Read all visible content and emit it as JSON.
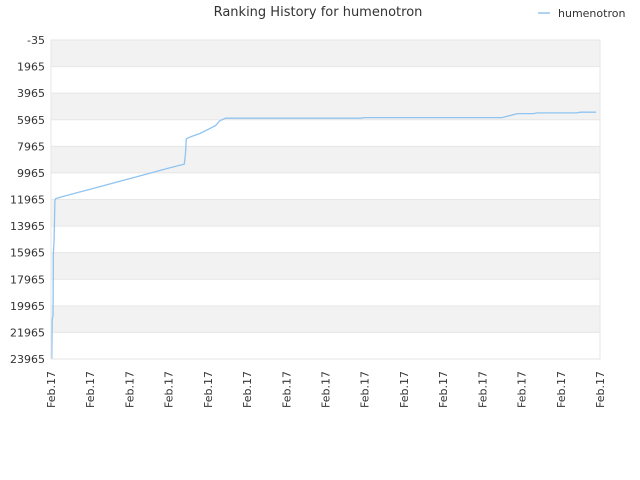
{
  "chart_data": {
    "type": "line",
    "title": "Ranking History for humenotron",
    "xlabel": "",
    "ylabel": "",
    "y_axis_inverted": true,
    "ylim": [
      -35,
      23965
    ],
    "y_ticks": [
      "-35",
      "1965",
      "3965",
      "5965",
      "7965",
      "9965",
      "11965",
      "13965",
      "15965",
      "17965",
      "19965",
      "21965",
      "23965"
    ],
    "x_ticks": [
      "Feb.17",
      "Feb.17",
      "Feb.17",
      "Feb.17",
      "Feb.17",
      "Feb.17",
      "Feb.17",
      "Feb.17",
      "Feb.17",
      "Feb.17",
      "Feb.17",
      "Feb.17",
      "Feb.17",
      "Feb.17",
      "Feb.17"
    ],
    "x_range": [
      0,
      14
    ],
    "grid": "horizontal bands",
    "legend_position": "top-right",
    "series": [
      {
        "name": "humenotron",
        "color": "#90c4f0",
        "points": [
          [
            0.02,
            23965
          ],
          [
            0.03,
            21000
          ],
          [
            0.05,
            20700
          ],
          [
            0.06,
            16000
          ],
          [
            0.08,
            15000
          ],
          [
            0.1,
            12050
          ],
          [
            0.12,
            11900
          ],
          [
            0.35,
            11700
          ],
          [
            1.0,
            11200
          ],
          [
            2.0,
            10400
          ],
          [
            3.0,
            9600
          ],
          [
            3.4,
            9300
          ],
          [
            3.43,
            8500
          ],
          [
            3.45,
            7400
          ],
          [
            3.6,
            7200
          ],
          [
            3.8,
            7000
          ],
          [
            4.0,
            6700
          ],
          [
            4.2,
            6400
          ],
          [
            4.3,
            6050
          ],
          [
            4.45,
            5850
          ],
          [
            5.0,
            5850
          ],
          [
            7.0,
            5850
          ],
          [
            7.9,
            5850
          ],
          [
            8.0,
            5800
          ],
          [
            10.0,
            5800
          ],
          [
            11.5,
            5800
          ],
          [
            11.9,
            5500
          ],
          [
            12.3,
            5500
          ],
          [
            12.4,
            5450
          ],
          [
            13.0,
            5450
          ],
          [
            13.4,
            5450
          ],
          [
            13.5,
            5400
          ],
          [
            13.9,
            5400
          ]
        ]
      }
    ]
  }
}
